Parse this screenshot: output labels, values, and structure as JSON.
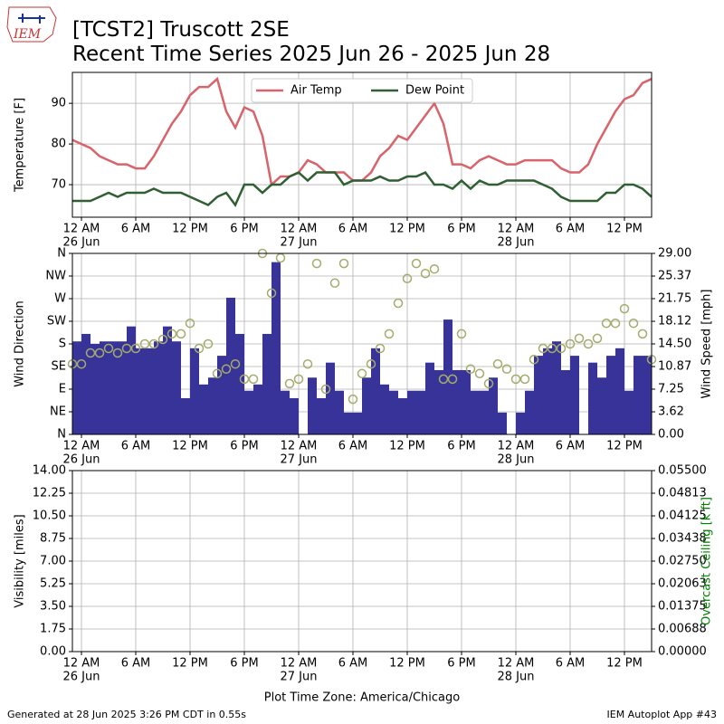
{
  "header": {
    "logo_text": "IEM",
    "title": "[TCST2] Truscott 2SE",
    "subtitle": "Recent Time Series 2025 Jun 26 - 2025 Jun 28"
  },
  "footer": {
    "generated": "Generated at 28 Jun 2025 3:26 PM CDT in 0.55s",
    "app": "IEM Autoplot App #43"
  },
  "chart_data": [
    {
      "type": "line",
      "ylabel": "Temperature [F]",
      "grid": true,
      "legend": "upper center",
      "xlim": [
        -1,
        63
      ],
      "xticks": [
        {
          "value": 0,
          "label": "12 AM",
          "date": "26 Jun"
        },
        {
          "value": 6,
          "label": "6 AM"
        },
        {
          "value": 12,
          "label": "12 PM"
        },
        {
          "value": 18,
          "label": "6 PM"
        },
        {
          "value": 24,
          "label": "12 AM",
          "date": "27 Jun"
        },
        {
          "value": 30,
          "label": "6 AM"
        },
        {
          "value": 36,
          "label": "12 PM"
        },
        {
          "value": 42,
          "label": "6 PM"
        },
        {
          "value": 48,
          "label": "12 AM",
          "date": "28 Jun"
        },
        {
          "value": 54,
          "label": "6 AM"
        },
        {
          "value": 60,
          "label": "12 PM"
        }
      ],
      "ylim": [
        62,
        97.6
      ],
      "yticks": [
        70,
        80,
        90
      ],
      "x": [
        -1,
        0,
        1,
        2,
        3,
        4,
        5,
        6,
        7,
        8,
        9,
        10,
        11,
        12,
        13,
        14,
        15,
        16,
        17,
        18,
        19,
        20,
        21,
        22,
        23,
        24,
        25,
        26,
        27,
        28,
        29,
        30,
        31,
        32,
        33,
        34,
        35,
        36,
        37,
        38,
        39,
        40,
        41,
        42,
        43,
        44,
        45,
        46,
        47,
        48,
        49,
        50,
        51,
        52,
        53,
        54,
        55,
        56,
        57,
        58,
        59,
        60,
        61,
        62,
        63
      ],
      "series": [
        {
          "name": "Air Temp",
          "color": "#d9636a",
          "values": [
            81,
            80,
            79,
            77,
            76,
            75,
            75,
            74,
            74,
            77,
            81,
            85,
            88,
            92,
            94,
            94,
            96,
            88,
            84,
            89,
            88,
            82,
            70,
            72,
            72,
            73,
            76,
            75,
            73,
            73,
            73,
            71,
            71,
            73,
            77,
            79,
            82,
            81,
            84,
            87,
            90,
            85,
            75,
            75,
            74,
            76,
            77,
            76,
            75,
            75,
            76,
            76,
            76,
            76,
            74,
            73,
            73,
            75,
            80,
            84,
            88,
            91,
            92,
            95,
            96
          ]
        },
        {
          "name": "Dew Point",
          "color": "#2f5f32",
          "values": [
            66,
            66,
            66,
            67,
            68,
            67,
            68,
            68,
            68,
            69,
            68,
            68,
            68,
            67,
            66,
            65,
            67,
            68,
            65,
            70,
            70,
            68,
            70,
            70,
            72,
            73,
            71,
            73,
            73,
            73,
            70,
            71,
            71,
            71,
            72,
            71,
            71,
            72,
            72,
            73,
            70,
            70,
            69,
            71,
            69,
            71,
            70,
            70,
            71,
            71,
            71,
            71,
            70,
            69,
            67,
            66,
            66,
            66,
            66,
            68,
            68,
            70,
            70,
            69,
            67
          ]
        }
      ]
    },
    {
      "type": "bar",
      "ylabel": "Wind Direction",
      "y2label": "Wind Speed [mph]",
      "grid": true,
      "xlim": [
        -1,
        63
      ],
      "xticks": [
        {
          "value": 0,
          "label": "12 AM",
          "date": "26 Jun"
        },
        {
          "value": 6,
          "label": "6 AM"
        },
        {
          "value": 12,
          "label": "12 PM"
        },
        {
          "value": 18,
          "label": "6 PM"
        },
        {
          "value": 24,
          "label": "12 AM",
          "date": "27 Jun"
        },
        {
          "value": 30,
          "label": "6 AM"
        },
        {
          "value": 36,
          "label": "12 PM"
        },
        {
          "value": 42,
          "label": "6 PM"
        },
        {
          "value": 48,
          "label": "12 AM",
          "date": "28 Jun"
        },
        {
          "value": 54,
          "label": "6 AM"
        },
        {
          "value": 60,
          "label": "12 PM"
        }
      ],
      "ylim": [
        0,
        360
      ],
      "yticks": [
        {
          "value": 0,
          "label": "N"
        },
        {
          "value": 45,
          "label": "NE"
        },
        {
          "value": 90,
          "label": "E"
        },
        {
          "value": 135,
          "label": "SE"
        },
        {
          "value": 180,
          "label": "S"
        },
        {
          "value": 225,
          "label": "SW"
        },
        {
          "value": 270,
          "label": "W"
        },
        {
          "value": 315,
          "label": "NW"
        },
        {
          "value": 360,
          "label": "N"
        }
      ],
      "y2lim": [
        0,
        29
      ],
      "y2ticks": [
        {
          "value": 0,
          "label": "0.00"
        },
        3.62,
        7.25,
        10.87,
        {
          "value": 14.5,
          "label": "14.50"
        },
        18.12,
        21.75,
        25.37,
        {
          "value": 29,
          "label": "29.00"
        }
      ],
      "series": [
        {
          "type": "bar",
          "axis": "y2",
          "color": "#373399",
          "x": [
            -0.5,
            0.5,
            1.5,
            2.5,
            3.5,
            4.5,
            5.5,
            6.5,
            7.5,
            8.5,
            9.5,
            10.5,
            11.5,
            12.5,
            13.5,
            14.5,
            15.5,
            16.5,
            17.5,
            18.5,
            19.5,
            20.5,
            21.5,
            22.5,
            23.5,
            24.5,
            25.5,
            26.5,
            27.5,
            28.5,
            29.5,
            30.5,
            31.5,
            32.5,
            33.5,
            34.5,
            35.5,
            36.5,
            37.5,
            38.5,
            39.5,
            40.5,
            41.5,
            42.5,
            43.5,
            44.5,
            45.5,
            46.5,
            47.5,
            48.5,
            49.5,
            50.5,
            51.5,
            52.5,
            53.5,
            54.5,
            55.5,
            56.5,
            57.5,
            58.5,
            59.5,
            60.5,
            61.5,
            62.5
          ],
          "values": [
            14.9,
            16.1,
            14.5,
            14.9,
            14.9,
            14.9,
            17.3,
            13.8,
            13.8,
            14.9,
            17.3,
            14.9,
            5.8,
            13.8,
            8.0,
            9.1,
            12.6,
            21.9,
            16.1,
            7.0,
            8.0,
            16.1,
            27.6,
            7.0,
            5.8,
            0,
            9.1,
            5.8,
            11.5,
            7.0,
            3.5,
            3.5,
            9.1,
            13.8,
            8.0,
            7.0,
            5.8,
            7.0,
            7.0,
            11.5,
            10.3,
            18.4,
            10.3,
            10.3,
            7.0,
            7.0,
            9.1,
            3.5,
            0,
            3.5,
            7.0,
            12.6,
            13.8,
            14.9,
            10.3,
            12.6,
            0,
            11.5,
            9.1,
            12.6,
            13.8,
            7.0,
            12.6,
            12.6
          ]
        },
        {
          "type": "scatter",
          "color": "#a5ab6a",
          "x": [
            -1,
            0,
            1,
            2,
            3,
            4,
            5,
            6,
            7,
            8,
            9,
            10,
            11,
            12,
            13,
            14,
            15,
            16,
            17,
            18,
            19,
            20,
            21,
            22,
            23,
            24,
            25,
            26,
            27,
            28,
            29,
            30,
            31,
            32,
            33,
            34,
            35,
            36,
            37,
            38,
            39,
            40,
            41,
            42,
            43,
            44,
            45,
            46,
            47,
            48,
            49,
            50,
            51,
            52,
            53,
            54,
            55,
            56,
            57,
            58,
            59,
            60,
            61,
            62,
            63
          ],
          "values": [
            140,
            140,
            162,
            162,
            171,
            162,
            171,
            171,
            180,
            180,
            189,
            200,
            200,
            221,
            171,
            180,
            121,
            130,
            140,
            110,
            110,
            360,
            281,
            351,
            101,
            110,
            140,
            340,
            90,
            301,
            340,
            70,
            121,
            140,
            171,
            200,
            261,
            310,
            340,
            320,
            329,
            110,
            110,
            200,
            130,
            121,
            101,
            140,
            130,
            110,
            110,
            149,
            171,
            171,
            171,
            180,
            191,
            180,
            191,
            221,
            221,
            250,
            221,
            200,
            149
          ]
        }
      ]
    },
    {
      "type": "line",
      "ylabel": "Visibility [miles]",
      "y2label": "Overcast Ceiling [k ft]",
      "y2label_color": "#008000",
      "xlabel": "Plot Time Zone: America/Chicago",
      "grid": true,
      "xlim": [
        -1,
        63
      ],
      "xticks": [
        {
          "value": 0,
          "label": "12 AM",
          "date": "26 Jun"
        },
        {
          "value": 6,
          "label": "6 AM"
        },
        {
          "value": 12,
          "label": "12 PM"
        },
        {
          "value": 18,
          "label": "6 PM"
        },
        {
          "value": 24,
          "label": "12 AM",
          "date": "27 Jun"
        },
        {
          "value": 30,
          "label": "6 AM"
        },
        {
          "value": 36,
          "label": "12 PM"
        },
        {
          "value": 42,
          "label": "6 PM"
        },
        {
          "value": 48,
          "label": "12 AM",
          "date": "28 Jun"
        },
        {
          "value": 54,
          "label": "6 AM"
        },
        {
          "value": 60,
          "label": "12 PM"
        }
      ],
      "ylim": [
        0,
        14
      ],
      "yticks": [
        {
          "value": 0,
          "label": "0.00"
        },
        1.75,
        {
          "value": 3.5,
          "label": "3.50"
        },
        5.25,
        {
          "value": 7,
          "label": "7.00"
        },
        8.75,
        {
          "value": 10.5,
          "label": "10.50"
        },
        12.25,
        {
          "value": 14,
          "label": "14.00"
        }
      ],
      "y2lim": [
        0,
        0.055
      ],
      "y2ticks": [
        {
          "value": 0,
          "label": "0.00000"
        },
        {
          "value": 0.006875,
          "label": "0.00688"
        },
        0.01375,
        {
          "value": 0.020625,
          "label": "0.02063"
        },
        {
          "value": 0.0275,
          "label": "0.02750"
        },
        {
          "value": 0.034375,
          "label": "0.03438"
        },
        0.04125,
        {
          "value": 0.048125,
          "label": "0.04813"
        },
        {
          "value": 0.055,
          "label": "0.05500"
        }
      ],
      "series": []
    }
  ]
}
